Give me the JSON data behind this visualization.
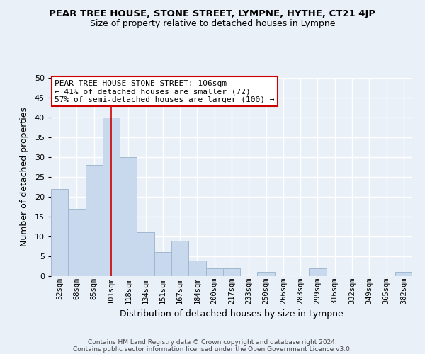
{
  "title": "PEAR TREE HOUSE, STONE STREET, LYMPNE, HYTHE, CT21 4JP",
  "subtitle": "Size of property relative to detached houses in Lympne",
  "xlabel": "Distribution of detached houses by size in Lympne",
  "ylabel": "Number of detached properties",
  "bar_labels": [
    "52sqm",
    "68sqm",
    "85sqm",
    "101sqm",
    "118sqm",
    "134sqm",
    "151sqm",
    "167sqm",
    "184sqm",
    "200sqm",
    "217sqm",
    "233sqm",
    "250sqm",
    "266sqm",
    "283sqm",
    "299sqm",
    "316sqm",
    "332sqm",
    "349sqm",
    "365sqm",
    "382sqm"
  ],
  "bar_values": [
    22,
    17,
    28,
    40,
    30,
    11,
    6,
    9,
    4,
    2,
    2,
    0,
    1,
    0,
    0,
    2,
    0,
    0,
    0,
    0,
    1
  ],
  "bar_color": "#c8d9ed",
  "bar_edge_color": "#a0b8d0",
  "vline_x": 3,
  "vline_color": "#cc0000",
  "ylim": [
    0,
    50
  ],
  "yticks": [
    0,
    5,
    10,
    15,
    20,
    25,
    30,
    35,
    40,
    45,
    50
  ],
  "annotation_lines": [
    "PEAR TREE HOUSE STONE STREET: 106sqm",
    "← 41% of detached houses are smaller (72)",
    "57% of semi-detached houses are larger (100) →"
  ],
  "annotation_box_color": "#ffffff",
  "annotation_box_edge": "#cc0000",
  "footer_lines": [
    "Contains HM Land Registry data © Crown copyright and database right 2024.",
    "Contains public sector information licensed under the Open Government Licence v3.0."
  ],
  "bg_color": "#eaf0f8",
  "plot_bg_color": "#eaf0f8",
  "grid_color": "#ffffff"
}
